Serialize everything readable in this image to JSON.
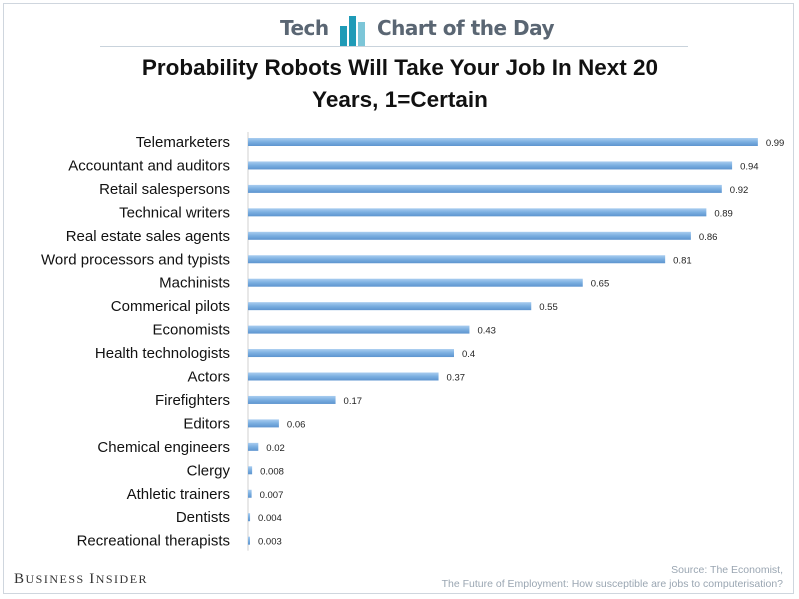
{
  "header": {
    "left_word": "Tech",
    "right_words": "Chart of the Day",
    "icon": "bar-chart-icon",
    "accent_color": "#1f9bb7"
  },
  "title_line1": "Probability Robots Will Take Your Job In Next 20",
  "title_line2": "Years, 1=Certain",
  "chart_data": {
    "type": "bar",
    "orientation": "horizontal",
    "categories": [
      "Telemarketers",
      "Accountant and auditors",
      "Retail salespersons",
      "Technical writers",
      "Real estate sales agents",
      "Word processors and typists",
      "Machinists",
      "Commerical pilots",
      "Economists",
      "Health technologists",
      "Actors",
      "Firefighters",
      "Editors",
      "Chemical engineers",
      "Clergy",
      "Athletic trainers",
      "Dentists",
      "Recreational therapists"
    ],
    "values": [
      0.99,
      0.94,
      0.92,
      0.89,
      0.86,
      0.81,
      0.65,
      0.55,
      0.43,
      0.4,
      0.37,
      0.17,
      0.06,
      0.02,
      0.008,
      0.007,
      0.004,
      0.003
    ],
    "value_labels": [
      "0.99",
      "0.94",
      "0.92",
      "0.89",
      "0.86",
      "0.81",
      "0.65",
      "0.55",
      "0.43",
      "0.4",
      "0.37",
      "0.17",
      "0.06",
      "0.02",
      "0.008",
      "0.007",
      "0.004",
      "0.003"
    ],
    "xlim": [
      0,
      1
    ],
    "grid": false,
    "legend": "none",
    "bar_color": "#7aaee0"
  },
  "footer": {
    "brand_big_b": "B",
    "brand_rest1": "USINESS ",
    "brand_big_i": "I",
    "brand_rest2": "NSIDER",
    "source_line1": "Source: The Economist,",
    "source_line2": "The Future of Employment: How susceptible are jobs to computerisation?"
  }
}
